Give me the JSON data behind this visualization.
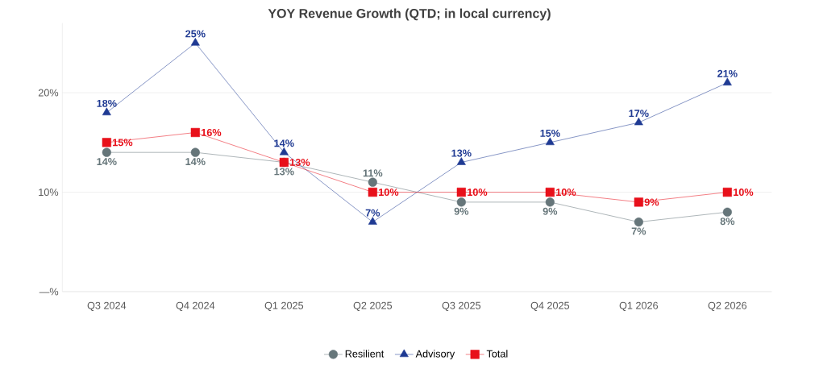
{
  "chart_data": {
    "type": "line",
    "title": "YOY Revenue Growth (QTD; in local currency)",
    "categories": [
      "Q3 2024",
      "Q4 2024",
      "Q1 2025",
      "Q2 2025",
      "Q3 2025",
      "Q4 2025",
      "Q1 2026",
      "Q2 2026"
    ],
    "series": [
      {
        "name": "Resilient",
        "color": "#66767a",
        "marker": "circle",
        "values": [
          14,
          14,
          13,
          11,
          9,
          9,
          7,
          8
        ],
        "value_labels": [
          "14%",
          "14%",
          "13%",
          "11%",
          "9%",
          "9%",
          "7%",
          "8%"
        ]
      },
      {
        "name": "Advisory",
        "color": "#1f3a93",
        "marker": "triangle",
        "values": [
          18,
          25,
          14,
          7,
          13,
          15,
          17,
          21
        ],
        "value_labels": [
          "18%",
          "25%",
          "14%",
          "7%",
          "13%",
          "15%",
          "17%",
          "21%"
        ]
      },
      {
        "name": "Total",
        "color": "#e8101a",
        "marker": "square",
        "values": [
          15,
          16,
          13,
          10,
          10,
          10,
          9,
          10
        ],
        "value_labels": [
          "15%",
          "16%",
          "13%",
          "10%",
          "10%",
          "10%",
          "9%",
          "10%"
        ]
      }
    ],
    "yticks": [
      {
        "value": 0,
        "label": "—%"
      },
      {
        "value": 10,
        "label": "10%"
      },
      {
        "value": 20,
        "label": "20%"
      }
    ],
    "ylim": [
      0,
      27
    ],
    "grid": "y",
    "legend": "bottom",
    "line_style": "solid"
  }
}
